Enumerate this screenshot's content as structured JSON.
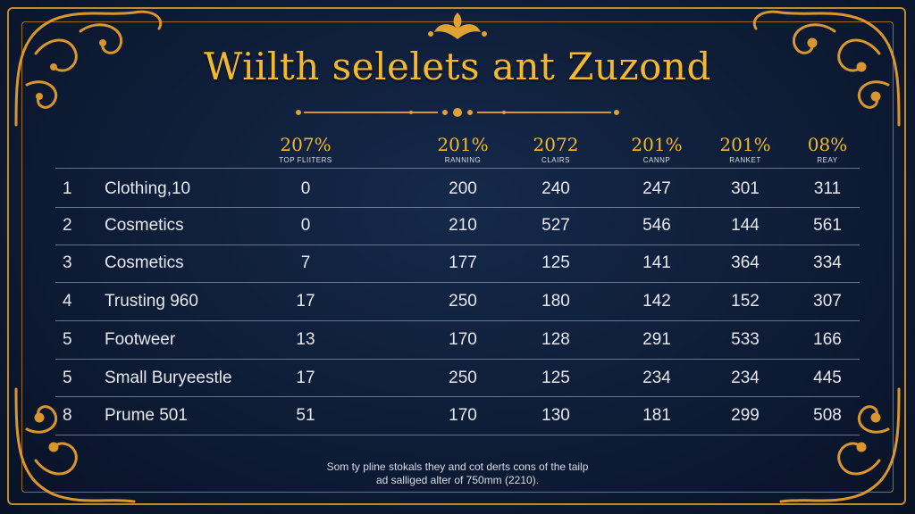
{
  "title": "Wiilth selelets ant Zuzond",
  "colors": {
    "gold": "#f2b82e",
    "frame": "#c48a2a",
    "background": "#0e1c36",
    "text": "#e6e8ee"
  },
  "columns": [
    {
      "pct": "207%",
      "sub": "TOP FLIITERS"
    },
    {
      "pct": "201%",
      "sub": "RANNING"
    },
    {
      "pct": "2072",
      "sub": "CLAIRS"
    },
    {
      "pct": "201%",
      "sub": "CANNP"
    },
    {
      "pct": "201%",
      "sub": "RANKET"
    },
    {
      "pct": "08%",
      "sub": "REAY"
    }
  ],
  "rows": [
    {
      "rank": "1",
      "name": "Clothing,10",
      "values": [
        "0",
        "200",
        "240",
        "247",
        "301",
        "311"
      ]
    },
    {
      "rank": "2",
      "name": "Cosmetics",
      "values": [
        "0",
        "210",
        "527",
        "546",
        "144",
        "561"
      ]
    },
    {
      "rank": "3",
      "name": "Cosmetics",
      "values": [
        "7",
        "177",
        "125",
        "141",
        "364",
        "334"
      ]
    },
    {
      "rank": "4",
      "name": "Trusting 960",
      "values": [
        "17",
        "250",
        "180",
        "142",
        "152",
        "307"
      ]
    },
    {
      "rank": "5",
      "name": "Footweer",
      "values": [
        "13",
        "170",
        "128",
        "291",
        "533",
        "166"
      ]
    },
    {
      "rank": "5",
      "name": "Small Buryeestle",
      "values": [
        "17",
        "250",
        "125",
        "234",
        "234",
        "445"
      ]
    },
    {
      "rank": "8",
      "name": "Prume 501",
      "values": [
        "51",
        "170",
        "130",
        "181",
        "299",
        "508"
      ]
    }
  ],
  "footnote": {
    "line1": "Som ty pline stokals they and cot derts cons of the tailp",
    "line2": "ad salliged alter of 750mm (2210)."
  },
  "chart_data": {
    "type": "table",
    "title": "Wiilth selelets ant Zuzond",
    "columns": [
      "207% TOP FLIITERS",
      "201% RANNING",
      "2072 CLAIRS",
      "201% CANNP",
      "201% RANKET",
      "08% REAY"
    ],
    "rows": [
      [
        "1",
        "Clothing,10",
        0,
        200,
        240,
        247,
        301,
        311
      ],
      [
        "2",
        "Cosmetics",
        0,
        210,
        527,
        546,
        144,
        561
      ],
      [
        "3",
        "Cosmetics",
        7,
        177,
        125,
        141,
        364,
        334
      ],
      [
        "4",
        "Trusting 960",
        17,
        250,
        180,
        142,
        152,
        307
      ],
      [
        "5",
        "Footweer",
        13,
        170,
        128,
        291,
        533,
        166
      ],
      [
        "5",
        "Small Buryeestle",
        17,
        250,
        125,
        234,
        234,
        445
      ],
      [
        "8",
        "Prume 501",
        51,
        170,
        130,
        181,
        299,
        508
      ]
    ]
  }
}
